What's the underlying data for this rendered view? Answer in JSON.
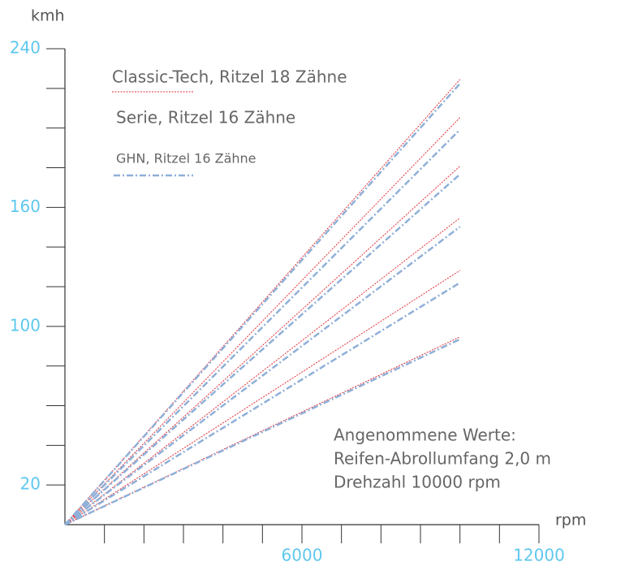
{
  "chart_data": {
    "type": "line",
    "y_label": "kmh",
    "x_label": "rpm",
    "xlim": [
      0,
      12000
    ],
    "xticks": [
      6000,
      12000
    ],
    "xminorticks": [
      1000,
      2000,
      3000,
      4000,
      5000,
      6000,
      7000,
      8000,
      9000,
      10000,
      11000,
      12000
    ],
    "ylim": [
      0,
      240
    ],
    "yticks": [
      20,
      100,
      160,
      240
    ],
    "yminorticks": [
      20,
      40,
      60,
      80,
      100,
      120,
      140,
      160,
      180,
      200,
      220,
      240
    ],
    "x": [
      0,
      10000
    ],
    "series": [
      {
        "name": "Classic-Tech, Ritzel 18 Zähne",
        "color": "#e0303a",
        "dash": "2 1.5",
        "width": 1,
        "gears": [
          [
            0,
            224.5
          ],
          [
            0,
            205.3
          ],
          [
            0,
            180.8
          ],
          [
            0,
            154.7
          ],
          [
            0,
            128.2
          ],
          [
            0,
            94.7
          ]
        ]
      },
      {
        "name": "Serie, Ritzel 16 Zähne",
        "color": "none",
        "dash": "none",
        "width": 0,
        "gears": []
      },
      {
        "name": "GHN, Ritzel 16 Zähne",
        "color": "#8fb0d8",
        "dash": "8 3 2 3",
        "width": 2.5,
        "gears": [
          [
            0,
            222.4
          ],
          [
            0,
            199.2
          ],
          [
            0,
            176.7
          ],
          [
            0,
            150.2
          ],
          [
            0,
            122.0
          ],
          [
            0,
            93.5
          ]
        ]
      }
    ],
    "annotation": [
      "Angenommene Werte:",
      "Reifen-Abrollumfang 2,0 m",
      "Drehzahl 10000 rpm"
    ]
  }
}
